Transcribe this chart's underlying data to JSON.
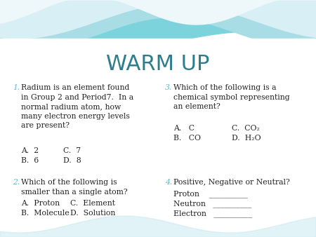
{
  "title": "WARM UP",
  "title_color": "#2E7D8C",
  "title_fontsize": 22,
  "bg_color": "#FFFFFF",
  "q1_num": "1.",
  "q1_text": "Radium is an element found\nin Group 2 and Period7.  In a\nnormal radium atom, how\nmany electron energy levels\nare present?",
  "q1_a": "A.  2",
  "q1_c": "C.  7",
  "q1_b": "B.  6",
  "q1_d": "D.  8",
  "q2_num": "2.",
  "q2_text": "Which of the following is\nsmaller than a single atom?",
  "q2_a": "A.  Proton",
  "q2_c": "C.  Element",
  "q2_b": "B.  Molecule",
  "q2_d": "D.  Solution",
  "q3_num": "3.",
  "q3_text": "Which of the following is a\nchemical symbol representing\nan element?",
  "q3_a": "A.   C",
  "q3_c": "C.  CO₂",
  "q3_b": "B.   CO",
  "q3_d": "D.  H₂O",
  "q4_num": "4.",
  "q4_text": "Positive, Negative or Neutral?",
  "q4_l1": "Proton    __________",
  "q4_l2": "Neutron   __________",
  "q4_l3": "Electron   __________",
  "num_color": "#5BB8C8",
  "text_color": "#222222",
  "body_fontsize": 7.8
}
